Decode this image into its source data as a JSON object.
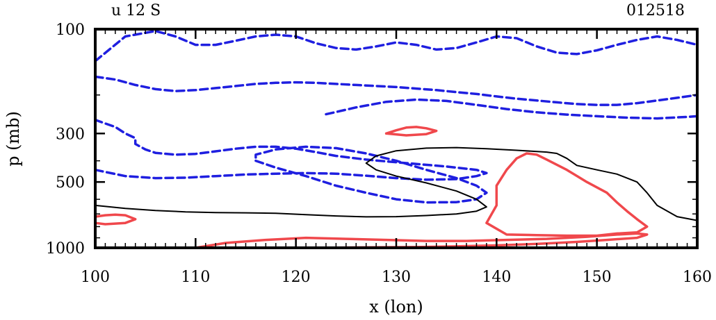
{
  "chart_data": {
    "type": "contour",
    "title_left": "u 12 S",
    "title_right": "012518",
    "xlabel": "x (lon)",
    "ylabel": "p (mb)",
    "x_range": [
      100,
      160
    ],
    "x_ticks": [
      100,
      110,
      120,
      130,
      140,
      150,
      160
    ],
    "y_range": [
      100,
      1000
    ],
    "y_scale": "log",
    "y_ticks": [
      100,
      300,
      500,
      1000
    ],
    "grid": false,
    "colors": {
      "negative": "#1f1fe0",
      "zero": "#000000",
      "positive": "#f0484c"
    },
    "contours": [
      {
        "sign": "negative",
        "points": [
          [
            100,
            140
          ],
          [
            103,
            108
          ],
          [
            106,
            102
          ],
          [
            108,
            108
          ],
          [
            110,
            118
          ],
          [
            112,
            118
          ],
          [
            114,
            113
          ],
          [
            116,
            108
          ],
          [
            118,
            106
          ],
          [
            120,
            108
          ],
          [
            122,
            116
          ],
          [
            124,
            122
          ],
          [
            126,
            124
          ],
          [
            128,
            120
          ],
          [
            130,
            115
          ],
          [
            132,
            118
          ],
          [
            134,
            124
          ],
          [
            136,
            122
          ],
          [
            138,
            115
          ],
          [
            140,
            108
          ],
          [
            142,
            110
          ],
          [
            144,
            120
          ],
          [
            146,
            128
          ],
          [
            148,
            130
          ],
          [
            150,
            125
          ],
          [
            152,
            118
          ],
          [
            154,
            112
          ],
          [
            156,
            108
          ],
          [
            158,
            112
          ],
          [
            160,
            118
          ]
        ]
      },
      {
        "sign": "negative",
        "points": [
          [
            100,
            165
          ],
          [
            102,
            170
          ],
          [
            104,
            180
          ],
          [
            106,
            188
          ],
          [
            108,
            192
          ],
          [
            110,
            190
          ],
          [
            112,
            186
          ],
          [
            114,
            182
          ],
          [
            116,
            178
          ],
          [
            118,
            176
          ],
          [
            120,
            175
          ],
          [
            122,
            176
          ],
          [
            124,
            178
          ],
          [
            126,
            180
          ],
          [
            128,
            182
          ],
          [
            130,
            184
          ],
          [
            132,
            187
          ],
          [
            134,
            190
          ],
          [
            136,
            194
          ],
          [
            138,
            198
          ],
          [
            140,
            203
          ],
          [
            142,
            208
          ],
          [
            144,
            212
          ],
          [
            146,
            216
          ],
          [
            148,
            220
          ],
          [
            150,
            222
          ],
          [
            152,
            222
          ],
          [
            154,
            218
          ],
          [
            156,
            212
          ],
          [
            158,
            206
          ],
          [
            160,
            200
          ]
        ]
      },
      {
        "sign": "negative",
        "points": [
          [
            123,
            245
          ],
          [
            126,
            228
          ],
          [
            129,
            215
          ],
          [
            132,
            210
          ],
          [
            135,
            213
          ],
          [
            138,
            222
          ],
          [
            141,
            232
          ],
          [
            144,
            240
          ],
          [
            147,
            246
          ],
          [
            150,
            250
          ],
          [
            153,
            254
          ],
          [
            156,
            256
          ],
          [
            159,
            252
          ],
          [
            160,
            250
          ]
        ]
      },
      {
        "sign": "negative",
        "points": [
          [
            100,
            440
          ],
          [
            103,
            470
          ],
          [
            106,
            480
          ],
          [
            109,
            478
          ],
          [
            112,
            470
          ],
          [
            115,
            462
          ],
          [
            118,
            458
          ],
          [
            121,
            455
          ],
          [
            124,
            458
          ],
          [
            127,
            468
          ],
          [
            130,
            480
          ],
          [
            133,
            488
          ],
          [
            136,
            485
          ],
          [
            138,
            470
          ],
          [
            139,
            455
          ],
          [
            138,
            440
          ],
          [
            135,
            425
          ],
          [
            131,
            410
          ],
          [
            127,
            395
          ],
          [
            124,
            380
          ],
          [
            122,
            365
          ],
          [
            120,
            352
          ],
          [
            118,
            345
          ],
          [
            116,
            345
          ],
          [
            114,
            352
          ],
          [
            112,
            362
          ],
          [
            110,
            372
          ],
          [
            108,
            375
          ],
          [
            106,
            368
          ],
          [
            105,
            355
          ],
          [
            104,
            335
          ],
          [
            104,
            315
          ],
          [
            103,
            300
          ],
          [
            102,
            280
          ],
          [
            101,
            270
          ],
          [
            100,
            260
          ]
        ]
      },
      {
        "sign": "negative",
        "points": [
          [
            116,
            400
          ],
          [
            118,
            430
          ],
          [
            121,
            470
          ],
          [
            124,
            520
          ],
          [
            127,
            560
          ],
          [
            130,
            600
          ],
          [
            133,
            620
          ],
          [
            136,
            618
          ],
          [
            138,
            600
          ],
          [
            139,
            560
          ],
          [
            138,
            520
          ],
          [
            136,
            480
          ],
          [
            133,
            440
          ],
          [
            130,
            400
          ],
          [
            127,
            370
          ],
          [
            124,
            350
          ],
          [
            121,
            345
          ],
          [
            118,
            355
          ],
          [
            116,
            375
          ],
          [
            116,
            400
          ]
        ]
      },
      {
        "sign": "zero",
        "points": [
          [
            100,
            640
          ],
          [
            103,
            660
          ],
          [
            106,
            675
          ],
          [
            109,
            685
          ],
          [
            112,
            690
          ],
          [
            115,
            692
          ],
          [
            118,
            695
          ],
          [
            121,
            705
          ],
          [
            124,
            715
          ],
          [
            127,
            722
          ],
          [
            130,
            720
          ],
          [
            133,
            712
          ],
          [
            136,
            700
          ],
          [
            138,
            680
          ],
          [
            139,
            650
          ],
          [
            138,
            600
          ],
          [
            136,
            550
          ],
          [
            133,
            505
          ],
          [
            130,
            470
          ],
          [
            128,
            440
          ],
          [
            127,
            410
          ],
          [
            128,
            380
          ],
          [
            130,
            360
          ],
          [
            133,
            350
          ],
          [
            136,
            348
          ],
          [
            139,
            352
          ],
          [
            142,
            358
          ],
          [
            145,
            365
          ],
          [
            146,
            370
          ],
          [
            147,
            390
          ],
          [
            148,
            420
          ],
          [
            150,
            440
          ],
          [
            152,
            460
          ],
          [
            154,
            500
          ],
          [
            155,
            560
          ],
          [
            156,
            640
          ],
          [
            158,
            720
          ],
          [
            160,
            750
          ]
        ]
      },
      {
        "sign": "positive",
        "points": [
          [
            129,
            300
          ],
          [
            130,
            290
          ],
          [
            131,
            282
          ],
          [
            132,
            280
          ],
          [
            133,
            284
          ],
          [
            134,
            292
          ],
          [
            133,
            302
          ],
          [
            131,
            306
          ],
          [
            129,
            300
          ]
        ]
      },
      {
        "sign": "positive",
        "points": [
          [
            139,
            770
          ],
          [
            140,
            640
          ],
          [
            140,
            520
          ],
          [
            141,
            440
          ],
          [
            142,
            390
          ],
          [
            143,
            370
          ],
          [
            144,
            375
          ],
          [
            145,
            395
          ],
          [
            147,
            440
          ],
          [
            149,
            500
          ],
          [
            151,
            560
          ],
          [
            152,
            620
          ],
          [
            153,
            680
          ],
          [
            154,
            740
          ],
          [
            155,
            800
          ],
          [
            154,
            850
          ],
          [
            152,
            860
          ],
          [
            150,
            880
          ],
          [
            147,
            880
          ],
          [
            144,
            875
          ],
          [
            141,
            870
          ],
          [
            139,
            770
          ]
        ]
      },
      {
        "sign": "positive",
        "points": [
          [
            100,
            720
          ],
          [
            101,
            710
          ],
          [
            102,
            705
          ],
          [
            103,
            710
          ],
          [
            104,
            740
          ],
          [
            103,
            770
          ],
          [
            101,
            780
          ],
          [
            100,
            770
          ]
        ]
      },
      {
        "sign": "positive",
        "points": [
          [
            110,
            1000
          ],
          [
            113,
            950
          ],
          [
            117,
            920
          ],
          [
            121,
            900
          ],
          [
            125,
            910
          ],
          [
            129,
            920
          ],
          [
            133,
            930
          ],
          [
            137,
            930
          ],
          [
            141,
            920
          ],
          [
            145,
            910
          ],
          [
            149,
            890
          ],
          [
            152,
            870
          ],
          [
            154,
            860
          ],
          [
            155,
            870
          ],
          [
            154,
            900
          ],
          [
            151,
            920
          ],
          [
            148,
            940
          ],
          [
            144,
            960
          ],
          [
            140,
            975
          ],
          [
            136,
            985
          ],
          [
            132,
            992
          ],
          [
            128,
            995
          ],
          [
            124,
            998
          ],
          [
            120,
            1000
          ]
        ]
      }
    ]
  }
}
